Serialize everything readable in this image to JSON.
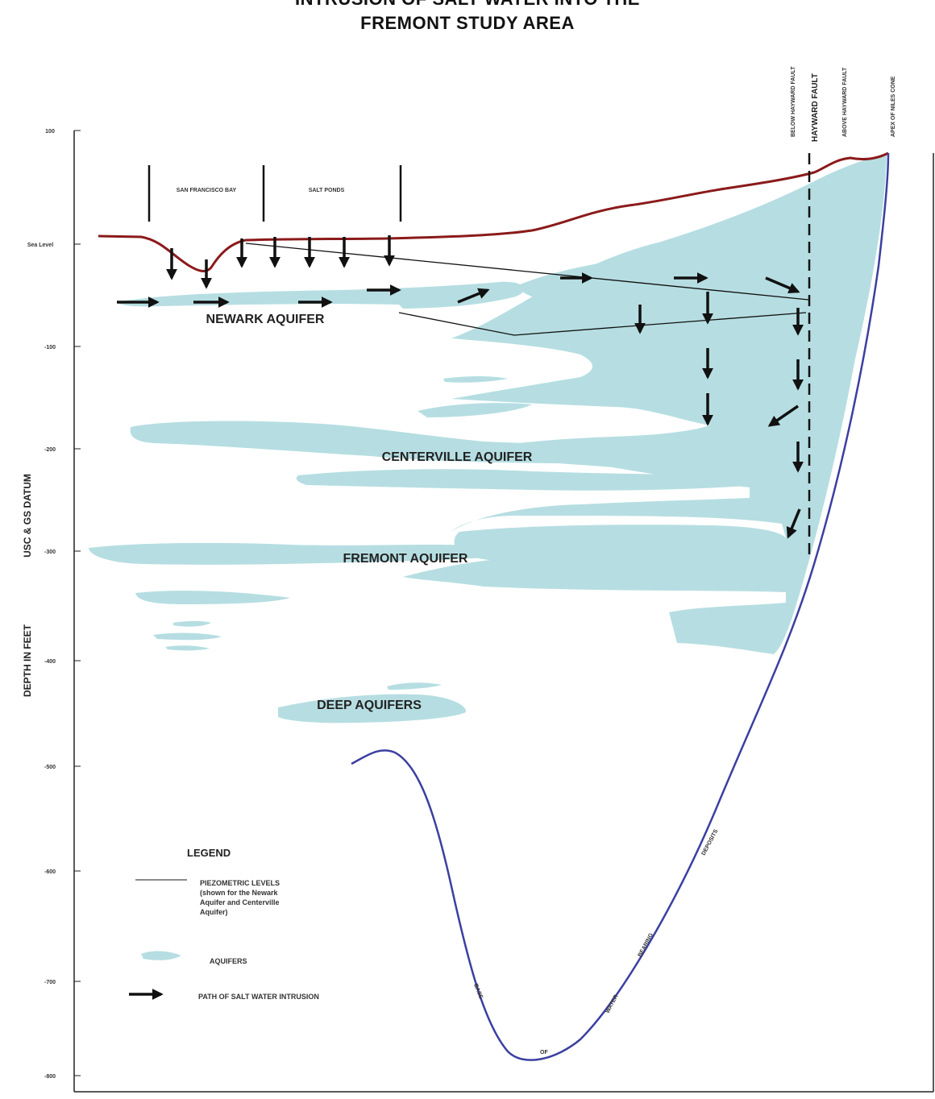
{
  "title": {
    "line1": "INTRUSION OF SALT WATER INTO THE",
    "line2": "FREMONT STUDY AREA"
  },
  "axis": {
    "ylabel_part1": "USC & GS DATUM",
    "ylabel_part2": "DEPTH IN FEET",
    "ticks": [
      "100",
      "Sea Level",
      "-100",
      "-200",
      "-300",
      "-400",
      "-500",
      "-600",
      "-700",
      "-800"
    ]
  },
  "zones": {
    "bay": "SAN FRANCISCO BAY",
    "ponds": "SALT PONDS"
  },
  "faults": {
    "below": "BELOW HAYWARD FAULT",
    "fault": "HAYWARD FAULT",
    "above": "ABOVE HAYWARD FAULT",
    "apex": "APEX OF NILES CONE"
  },
  "aquifers": {
    "newark": "NEWARK AQUIFER",
    "centerville": "CENTERVILLE AQUIFER",
    "fremont": "FREMONT AQUIFER",
    "deep": "DEEP AQUIFERS"
  },
  "base_labels": [
    "BASE",
    "OF",
    "WATER",
    "BEARING",
    "DEPOSITS"
  ],
  "legend": {
    "title": "LEGEND",
    "piezo_line1": "PIEZOMETRIC LEVELS",
    "piezo_line2": "(shown for the Newark",
    "piezo_line3": "Aquifer and Centerville",
    "piezo_line4": "Aquifer)",
    "aquifers": "AQUIFERS",
    "path": "PATH OF SALT WATER INTRUSION"
  },
  "colors": {
    "aquifer": "#b6dee2",
    "ground_surface": "#8b1a1a",
    "base_line": "#3b3fa0",
    "ink": "#111111"
  }
}
